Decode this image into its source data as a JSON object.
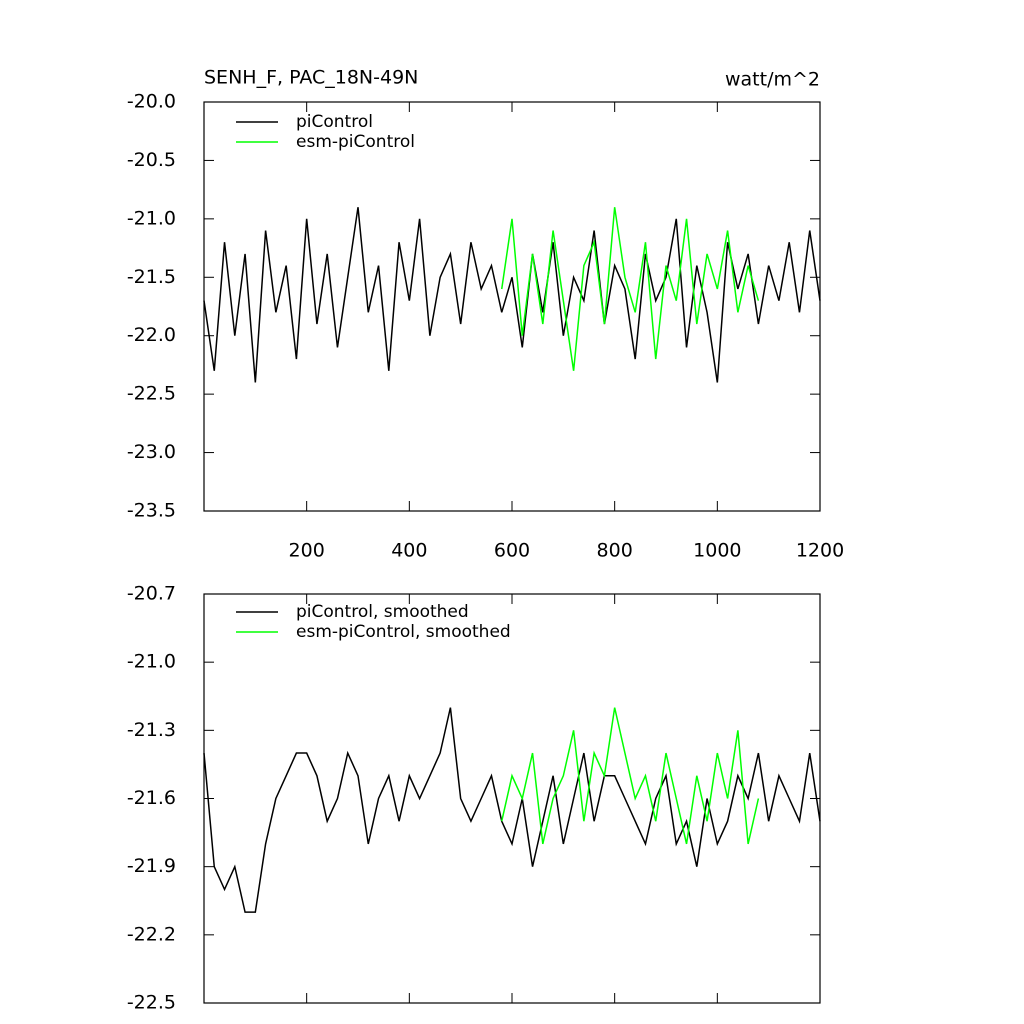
{
  "chart_data": [
    {
      "type": "line",
      "title": "SENH_F, PAC_18N-49N",
      "units_label": "watt/m^2",
      "x": [
        0,
        20,
        40,
        60,
        80,
        100,
        120,
        140,
        160,
        180,
        200,
        220,
        240,
        260,
        280,
        300,
        320,
        340,
        360,
        380,
        400,
        420,
        440,
        460,
        480,
        500,
        520,
        540,
        560,
        580,
        600,
        620,
        640,
        660,
        680,
        700,
        720,
        740,
        760,
        780,
        800,
        820,
        840,
        860,
        880,
        900,
        920,
        940,
        960,
        980,
        1000,
        1020,
        1040,
        1060,
        1080,
        1100,
        1120,
        1140,
        1160,
        1180,
        1200
      ],
      "series": [
        {
          "name": "piControl",
          "color": "#000000",
          "values": [
            -21.7,
            -22.3,
            -21.2,
            -22.0,
            -21.3,
            -22.4,
            -21.1,
            -21.8,
            -21.4,
            -22.2,
            -21.0,
            -21.9,
            -21.3,
            -22.1,
            -21.5,
            -20.9,
            -21.8,
            -21.4,
            -22.3,
            -21.2,
            -21.7,
            -21.0,
            -22.0,
            -21.5,
            -21.3,
            -21.9,
            -21.2,
            -21.6,
            -21.4,
            -21.8,
            -21.5,
            -22.1,
            -21.3,
            -21.8,
            -21.2,
            -22.0,
            -21.5,
            -21.7,
            -21.1,
            -21.9,
            -21.4,
            -21.6,
            -22.2,
            -21.3,
            -21.7,
            -21.5,
            -21.0,
            -22.1,
            -21.4,
            -21.8,
            -22.4,
            -21.2,
            -21.6,
            -21.3,
            -21.9,
            -21.4,
            -21.7,
            -21.2,
            -21.8,
            -21.1,
            -21.7
          ]
        },
        {
          "name": "esm-piControl",
          "color": "#00ff00",
          "values": [
            null,
            null,
            null,
            null,
            null,
            null,
            null,
            null,
            null,
            null,
            null,
            null,
            null,
            null,
            null,
            null,
            null,
            null,
            null,
            null,
            null,
            null,
            null,
            null,
            null,
            null,
            null,
            null,
            null,
            -21.6,
            -21.0,
            -22.0,
            -21.3,
            -21.9,
            -21.1,
            -21.7,
            -22.3,
            -21.4,
            -21.2,
            -21.9,
            -20.9,
            -21.5,
            -21.8,
            -21.2,
            -22.2,
            -21.4,
            -21.7,
            -21.0,
            -21.9,
            -21.3,
            -21.6,
            -21.1,
            -21.8,
            -21.4,
            -21.7,
            null,
            null,
            null,
            null,
            null,
            null
          ]
        }
      ],
      "xlim": [
        0,
        1200
      ],
      "xticks": [
        200,
        400,
        600,
        800,
        1000,
        1200
      ],
      "ylim": [
        -23.5,
        -20.0
      ],
      "yticks": [
        {
          "value": -20.0,
          "label": "-20.0"
        },
        -20.5,
        {
          "value": -21.0,
          "label": "-21.0"
        },
        -21.5,
        {
          "value": -22.0,
          "label": "-22.0"
        },
        -22.5,
        {
          "value": -23.0,
          "label": "-23.0"
        },
        -23.5
      ]
    },
    {
      "type": "line",
      "x": [
        0,
        20,
        40,
        60,
        80,
        100,
        120,
        140,
        160,
        180,
        200,
        220,
        240,
        260,
        280,
        300,
        320,
        340,
        360,
        380,
        400,
        420,
        440,
        460,
        480,
        500,
        520,
        540,
        560,
        580,
        600,
        620,
        640,
        660,
        680,
        700,
        720,
        740,
        760,
        780,
        800,
        820,
        840,
        860,
        880,
        900,
        920,
        940,
        960,
        980,
        1000,
        1020,
        1040,
        1060,
        1080,
        1100,
        1120,
        1140,
        1160,
        1180,
        1200
      ],
      "series": [
        {
          "name": "piControl, smoothed",
          "color": "#000000",
          "values": [
            -21.4,
            -21.9,
            -22.0,
            -21.9,
            -22.1,
            -22.1,
            -21.8,
            -21.6,
            -21.5,
            -21.4,
            -21.4,
            -21.5,
            -21.7,
            -21.6,
            -21.4,
            -21.5,
            -21.8,
            -21.6,
            -21.5,
            -21.7,
            -21.5,
            -21.6,
            -21.5,
            -21.4,
            -21.2,
            -21.6,
            -21.7,
            -21.6,
            -21.5,
            -21.7,
            -21.8,
            -21.6,
            -21.9,
            -21.7,
            -21.5,
            -21.8,
            -21.6,
            -21.4,
            -21.7,
            -21.5,
            -21.5,
            -21.6,
            -21.7,
            -21.8,
            -21.6,
            -21.5,
            -21.8,
            -21.7,
            -21.9,
            -21.6,
            -21.8,
            -21.7,
            -21.5,
            -21.6,
            -21.4,
            -21.7,
            -21.5,
            -21.6,
            -21.7,
            -21.4,
            -21.7
          ]
        },
        {
          "name": "esm-piControl, smoothed",
          "color": "#00ff00",
          "values": [
            null,
            null,
            null,
            null,
            null,
            null,
            null,
            null,
            null,
            null,
            null,
            null,
            null,
            null,
            null,
            null,
            null,
            null,
            null,
            null,
            null,
            null,
            null,
            null,
            null,
            null,
            null,
            null,
            null,
            -21.7,
            -21.5,
            -21.6,
            -21.4,
            -21.8,
            -21.6,
            -21.5,
            -21.3,
            -21.7,
            -21.4,
            -21.5,
            -21.2,
            -21.4,
            -21.6,
            -21.5,
            -21.7,
            -21.4,
            -21.6,
            -21.8,
            -21.5,
            -21.7,
            -21.4,
            -21.6,
            -21.3,
            -21.8,
            -21.6,
            null,
            null,
            null,
            null,
            null,
            null
          ]
        }
      ],
      "xlim": [
        0,
        1200
      ],
      "xticks": [
        200,
        400,
        600,
        800,
        1000,
        1200
      ],
      "ylim": [
        -22.5,
        -20.7
      ],
      "yticks": [
        -20.7,
        {
          "value": -21.0,
          "label": "-21.0"
        },
        -21.3,
        -21.6,
        -21.9,
        -22.2,
        -22.5
      ]
    }
  ]
}
